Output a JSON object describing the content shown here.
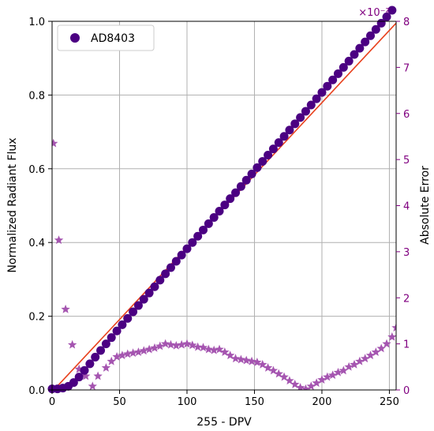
{
  "chart_data": {
    "type": "scatter",
    "legend": {
      "location": "top-left",
      "entries": [
        "AD8403"
      ]
    },
    "grid": true,
    "x_axis": {
      "label": "255 - DPV",
      "lim": [
        0,
        255
      ],
      "ticks": [
        0,
        50,
        100,
        150,
        200,
        250
      ]
    },
    "y_axis_left": {
      "label": "Normalized Radiant Flux",
      "lim": [
        0,
        1.0
      ],
      "ticks": [
        0.0,
        0.2,
        0.4,
        0.6,
        0.8,
        1.0
      ],
      "tick_labels": [
        "0.0",
        "0.2",
        "0.4",
        "0.6",
        "0.8",
        "1.0"
      ]
    },
    "y_axis_right": {
      "label": "Absolute Error",
      "lim": [
        0,
        8
      ],
      "ticks": [
        0,
        1,
        2,
        3,
        4,
        5,
        6,
        7,
        8
      ],
      "tick_labels": [
        "0",
        "1",
        "2",
        "3",
        "4",
        "5",
        "6",
        "7",
        "8"
      ],
      "offset_text": "×10⁻²",
      "color": "#800080"
    },
    "colors": {
      "marker": "#4b0082",
      "fit_line": "#e8401c",
      "error": "#a555b0",
      "right_axis": "#800080"
    },
    "series": [
      {
        "name": "AD8403",
        "axis": "left",
        "marker": "circle",
        "x": [
          0,
          4,
          8,
          12,
          16,
          20,
          24,
          28,
          32,
          36,
          40,
          44,
          48,
          52,
          56,
          60,
          64,
          68,
          72,
          76,
          80,
          84,
          88,
          92,
          96,
          100,
          104,
          108,
          112,
          116,
          120,
          124,
          128,
          132,
          136,
          140,
          144,
          148,
          152,
          156,
          160,
          164,
          168,
          172,
          176,
          180,
          184,
          188,
          192,
          196,
          200,
          204,
          208,
          212,
          216,
          220,
          224,
          228,
          232,
          236,
          240,
          244,
          248,
          252
        ],
        "y": [
          0.003,
          0.003,
          0.005,
          0.01,
          0.02,
          0.035,
          0.053,
          0.071,
          0.089,
          0.107,
          0.125,
          0.142,
          0.16,
          0.177,
          0.194,
          0.212,
          0.229,
          0.246,
          0.263,
          0.28,
          0.298,
          0.315,
          0.332,
          0.349,
          0.366,
          0.383,
          0.4,
          0.417,
          0.434,
          0.451,
          0.468,
          0.485,
          0.502,
          0.519,
          0.535,
          0.552,
          0.569,
          0.586,
          0.603,
          0.62,
          0.637,
          0.654,
          0.671,
          0.688,
          0.705,
          0.722,
          0.739,
          0.756,
          0.773,
          0.79,
          0.807,
          0.824,
          0.841,
          0.858,
          0.875,
          0.892,
          0.91,
          0.927,
          0.944,
          0.961,
          0.978,
          0.995,
          1.012,
          1.03
        ]
      },
      {
        "name": "",
        "axis": "left",
        "line": "solid",
        "x": [
          0,
          255
        ],
        "y": [
          -0.005,
          0.995
        ]
      },
      {
        "name": "",
        "axis": "right",
        "marker": "star",
        "x": [
          1,
          5,
          10,
          15,
          20,
          25,
          30,
          34,
          40,
          44,
          48,
          52,
          56,
          60,
          64,
          68,
          72,
          76,
          80,
          84,
          88,
          92,
          96,
          100,
          104,
          108,
          112,
          116,
          120,
          124,
          128,
          132,
          136,
          140,
          144,
          148,
          152,
          156,
          160,
          164,
          168,
          172,
          176,
          180,
          184,
          188,
          192,
          196,
          200,
          204,
          208,
          212,
          216,
          220,
          224,
          228,
          232,
          236,
          240,
          244,
          248,
          252,
          255
        ],
        "y": [
          5.35,
          3.25,
          1.75,
          0.98,
          0.45,
          0.3,
          0.08,
          0.3,
          0.48,
          0.62,
          0.72,
          0.75,
          0.78,
          0.8,
          0.82,
          0.85,
          0.88,
          0.91,
          0.95,
          1.0,
          0.98,
          0.96,
          0.98,
          1.0,
          0.97,
          0.93,
          0.92,
          0.88,
          0.86,
          0.88,
          0.82,
          0.75,
          0.68,
          0.66,
          0.64,
          0.62,
          0.6,
          0.55,
          0.48,
          0.42,
          0.35,
          0.28,
          0.2,
          0.12,
          0.05,
          0.02,
          0.08,
          0.15,
          0.22,
          0.28,
          0.32,
          0.38,
          0.42,
          0.5,
          0.55,
          0.62,
          0.68,
          0.75,
          0.82,
          0.9,
          1.0,
          1.15,
          1.35
        ]
      }
    ]
  }
}
